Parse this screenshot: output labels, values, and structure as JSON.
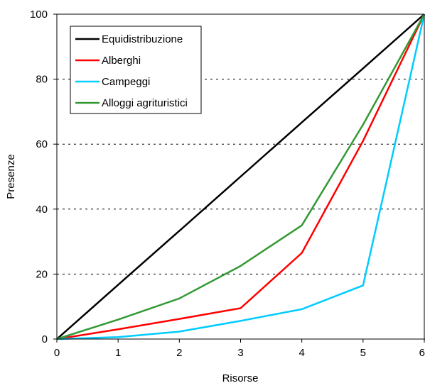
{
  "chart_data": {
    "type": "line",
    "xlabel": "Risorse",
    "ylabel": "Presenze",
    "xlim": [
      0,
      6
    ],
    "ylim": [
      0,
      100
    ],
    "x_ticks": [
      "0",
      "1",
      "2",
      "3",
      "4",
      "5",
      "6"
    ],
    "y_ticks": [
      "0",
      "20",
      "40",
      "60",
      "80",
      "100"
    ],
    "grid": "horizontal dashed",
    "legend_position": "top-left",
    "x": [
      0,
      1,
      2,
      3,
      4,
      5,
      6
    ],
    "series": [
      {
        "name": "Equidistribuzione",
        "color": "#000000",
        "values": [
          0,
          16.7,
          33.3,
          50,
          66.7,
          83.3,
          100
        ]
      },
      {
        "name": "Alberghi",
        "color": "#ff0000",
        "values": [
          0,
          3,
          6.2,
          9.5,
          26.5,
          61,
          100
        ]
      },
      {
        "name": "Campeggi",
        "color": "#00ccff",
        "values": [
          0,
          0.6,
          2.3,
          5.6,
          9.2,
          16.5,
          100
        ]
      },
      {
        "name": "Alloggi agrituristici",
        "color": "#339933",
        "values": [
          0,
          6,
          12.5,
          22.5,
          35,
          66,
          100
        ]
      }
    ]
  }
}
